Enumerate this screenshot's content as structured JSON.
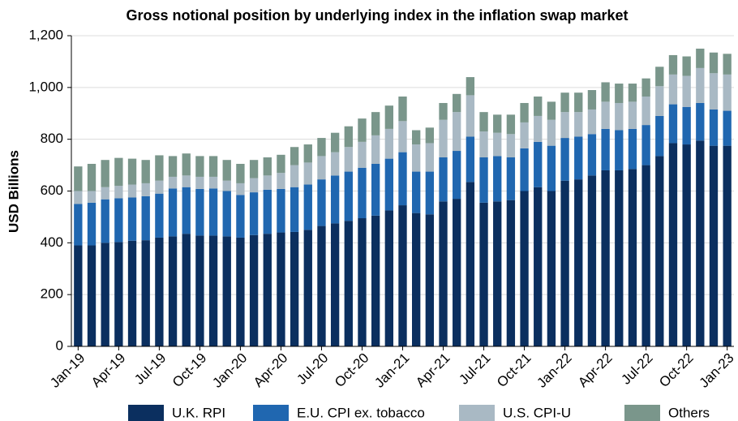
{
  "chart_data": {
    "type": "stacked_bar",
    "title": "Gross notional position by underlying index in the inflation swap market",
    "y_label": "USD Billions",
    "categories": [
      "Jan-19",
      null,
      null,
      "Apr-19",
      null,
      null,
      "Jul-19",
      null,
      null,
      "Oct-19",
      null,
      null,
      "Jan-20",
      null,
      null,
      "Apr-20",
      null,
      null,
      "Jul-20",
      null,
      null,
      "Oct-20",
      null,
      null,
      "Jan-21",
      null,
      null,
      "Apr-21",
      null,
      null,
      "Jul-21",
      null,
      null,
      "Oct-21",
      null,
      null,
      "Jan-22",
      null,
      null,
      "Apr-22",
      null,
      null,
      "Jul-22",
      null,
      null,
      "Oct-22",
      null,
      null,
      "Jan-23"
    ],
    "series": [
      {
        "name": "U.K. RPI",
        "color": "#0b2f5f",
        "values": [
          390,
          390,
          400,
          403,
          408,
          410,
          420,
          425,
          435,
          428,
          428,
          425,
          420,
          430,
          435,
          440,
          442,
          450,
          465,
          475,
          485,
          495,
          505,
          525,
          545,
          515,
          510,
          560,
          570,
          635,
          555,
          560,
          565,
          600,
          615,
          600,
          640,
          645,
          660,
          680,
          680,
          685,
          700,
          735,
          785,
          780,
          795,
          775,
          775
        ]
      },
      {
        "name": "E.U. CPI ex. tobacco",
        "color": "#2067b0",
        "values": [
          160,
          165,
          168,
          169,
          167,
          170,
          170,
          185,
          180,
          180,
          182,
          175,
          165,
          165,
          170,
          168,
          173,
          175,
          180,
          185,
          190,
          195,
          200,
          200,
          205,
          160,
          165,
          170,
          185,
          175,
          175,
          175,
          165,
          165,
          175,
          175,
          165,
          165,
          160,
          160,
          155,
          155,
          155,
          155,
          150,
          145,
          145,
          140,
          135
        ]
      },
      {
        "name": "U.S. CPI-U",
        "color": "#a9b9c4",
        "values": [
          50,
          45,
          47,
          48,
          50,
          50,
          50,
          45,
          45,
          47,
          45,
          40,
          45,
          55,
          55,
          62,
          85,
          85,
          90,
          90,
          95,
          100,
          110,
          115,
          120,
          105,
          110,
          145,
          150,
          160,
          100,
          90,
          90,
          100,
          100,
          100,
          100,
          95,
          95,
          105,
          105,
          105,
          110,
          115,
          115,
          120,
          135,
          140,
          140
        ]
      },
      {
        "name": "Others",
        "color": "#7a968b",
        "values": [
          95,
          105,
          105,
          108,
          100,
          90,
          98,
          80,
          85,
          80,
          80,
          80,
          75,
          70,
          70,
          70,
          70,
          70,
          70,
          75,
          80,
          90,
          90,
          90,
          95,
          55,
          60,
          65,
          70,
          70,
          75,
          70,
          75,
          75,
          75,
          70,
          75,
          75,
          75,
          75,
          75,
          70,
          70,
          75,
          75,
          75,
          75,
          80,
          80
        ]
      }
    ],
    "ylim": [
      0,
      1200
    ],
    "yticks": [
      0,
      200,
      400,
      600,
      800,
      {
        "value": 1000,
        "label": "1,000"
      },
      {
        "value": 1200,
        "label": "1,200"
      }
    ],
    "grid": true
  }
}
